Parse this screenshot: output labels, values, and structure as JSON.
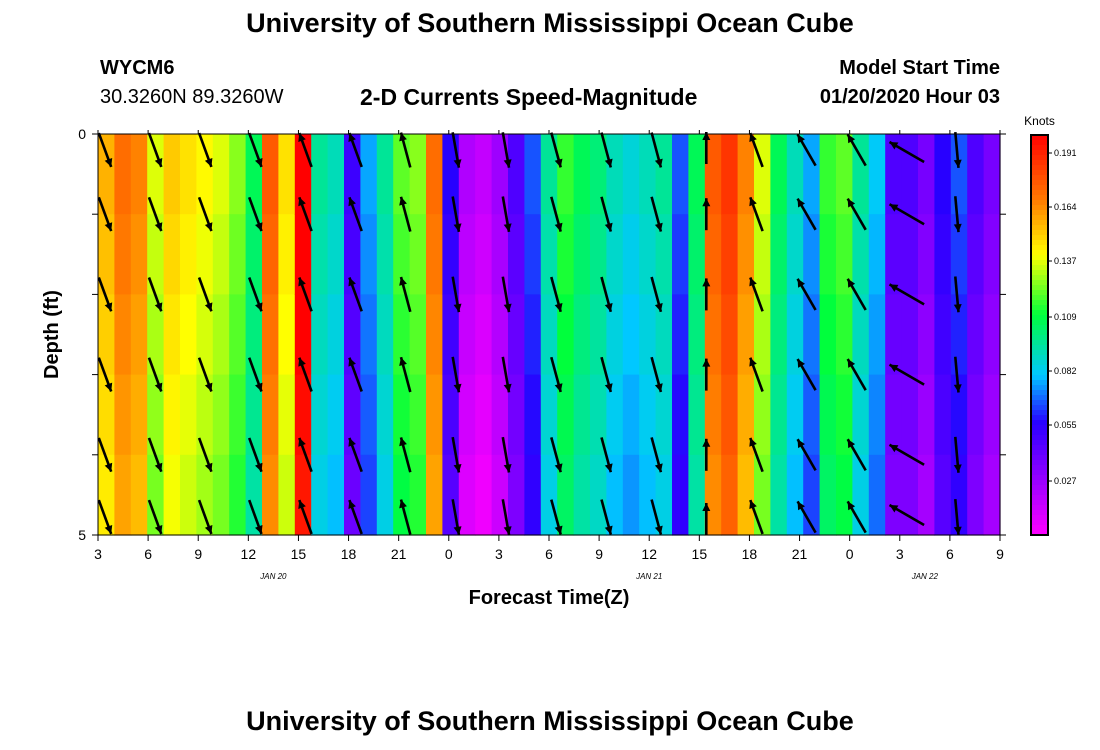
{
  "header": {
    "title": "University of Southern Mississippi Ocean Cube",
    "station_id": "WYCM6",
    "coords": "30.3260N 89.3260W",
    "subtitle": "2-D Currents Speed-Magnitude",
    "model_start_label": "Model Start Time",
    "model_start_value": "01/20/2020 Hour 03"
  },
  "footer": {
    "title": "University of Southern Mississippi Ocean Cube"
  },
  "chart_data": {
    "type": "heatmap",
    "title": "2-D Currents Speed-Magnitude",
    "xlabel": "Forecast Time(Z)",
    "ylabel": "Depth (ft)",
    "x_hours_since_start": [
      0,
      54
    ],
    "x_ticks": [
      {
        "h": 0,
        "label": "3"
      },
      {
        "h": 3,
        "label": "6"
      },
      {
        "h": 6,
        "label": "9"
      },
      {
        "h": 9,
        "label": "12"
      },
      {
        "h": 12,
        "label": "15"
      },
      {
        "h": 15,
        "label": "18"
      },
      {
        "h": 18,
        "label": "21"
      },
      {
        "h": 21,
        "label": "0"
      },
      {
        "h": 24,
        "label": "3"
      },
      {
        "h": 27,
        "label": "6"
      },
      {
        "h": 30,
        "label": "9"
      },
      {
        "h": 33,
        "label": "12"
      },
      {
        "h": 36,
        "label": "15"
      },
      {
        "h": 39,
        "label": "18"
      },
      {
        "h": 42,
        "label": "21"
      },
      {
        "h": 45,
        "label": "0"
      },
      {
        "h": 48,
        "label": "3"
      },
      {
        "h": 51,
        "label": "6"
      },
      {
        "h": 54,
        "label": "9"
      }
    ],
    "date_labels": [
      {
        "h": 10.5,
        "label": "JAN 20"
      },
      {
        "h": 33,
        "label": "JAN 21"
      },
      {
        "h": 49.5,
        "label": "JAN 22"
      }
    ],
    "ylim": [
      0,
      5
    ],
    "y_tick_labels": [
      "0",
      "5"
    ],
    "colorbar": {
      "unit": "Knots",
      "range": [
        0.0,
        0.2
      ],
      "labels": [
        "0.191",
        "0.164",
        "0.137",
        "0.109",
        "0.082",
        "0.055",
        "0.027"
      ],
      "label_values": [
        0.191,
        0.164,
        0.137,
        0.109,
        0.082,
        0.055,
        0.027
      ]
    },
    "speed_hourly_knots": [
      0.15,
      0.165,
      0.16,
      0.13,
      0.145,
      0.14,
      0.135,
      0.13,
      0.12,
      0.1,
      0.17,
      0.14,
      0.2,
      0.09,
      0.085,
      0.045,
      0.07,
      0.09,
      0.115,
      0.12,
      0.165,
      0.05,
      0.015,
      0.01,
      0.02,
      0.04,
      0.06,
      0.09,
      0.11,
      0.1,
      0.095,
      0.085,
      0.08,
      0.085,
      0.09,
      0.06,
      0.1,
      0.17,
      0.18,
      0.16,
      0.13,
      0.1,
      0.085,
      0.07,
      0.11,
      0.115,
      0.09,
      0.075,
      0.04,
      0.04,
      0.03,
      0.05,
      0.06,
      0.04,
      0.03
    ],
    "depth_row_offsets_knots": [
      0.006,
      0.003,
      0.0,
      -0.003,
      -0.006
    ],
    "vectors": [
      {
        "h": 0,
        "angle": 160,
        "len": 0.9
      },
      {
        "h": 3,
        "angle": 160,
        "len": 0.9
      },
      {
        "h": 6,
        "angle": 160,
        "len": 0.9
      },
      {
        "h": 9,
        "angle": 160,
        "len": 0.9
      },
      {
        "h": 12,
        "angle": 340,
        "len": 0.9
      },
      {
        "h": 15,
        "angle": 340,
        "len": 0.9
      },
      {
        "h": 18,
        "angle": 345,
        "len": 0.9
      },
      {
        "h": 21,
        "angle": 170,
        "len": 0.9
      },
      {
        "h": 24,
        "angle": 170,
        "len": 0.9
      },
      {
        "h": 27,
        "angle": 165,
        "len": 0.9
      },
      {
        "h": 30,
        "angle": 165,
        "len": 0.9
      },
      {
        "h": 33,
        "angle": 165,
        "len": 0.9
      },
      {
        "h": 36,
        "angle": 0,
        "len": 0.8
      },
      {
        "h": 39,
        "angle": 340,
        "len": 0.9
      },
      {
        "h": 42,
        "angle": 330,
        "len": 0.9
      },
      {
        "h": 45,
        "angle": 330,
        "len": 0.9
      },
      {
        "h": 48,
        "angle": 300,
        "len": 1.0
      },
      {
        "h": 51,
        "angle": 175,
        "len": 0.9
      }
    ],
    "depth_vector_rows": [
      0,
      1,
      2,
      3,
      4,
      5
    ]
  }
}
